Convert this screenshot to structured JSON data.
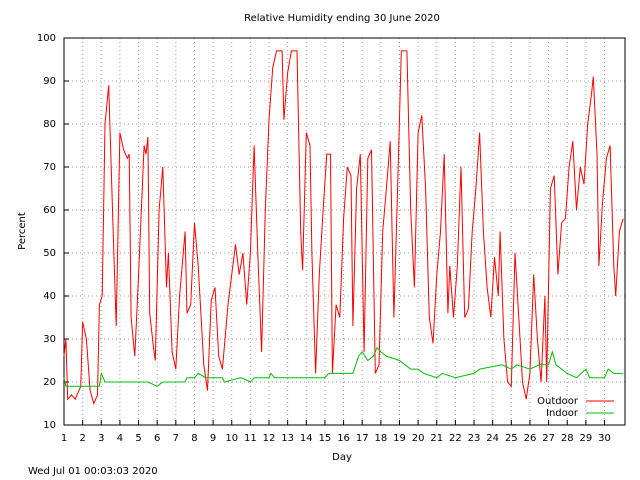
{
  "chart_data": {
    "type": "line",
    "title": "Relative Humidity ending 30 June 2020",
    "ylabel": "Percent",
    "xlabel": "Day",
    "footer": "Wed Jul 01 00:03:03 2020",
    "xlim": [
      1,
      31.1
    ],
    "ylim": [
      10,
      100
    ],
    "xticks": [
      1,
      2,
      3,
      4,
      5,
      6,
      7,
      8,
      9,
      10,
      11,
      12,
      13,
      14,
      15,
      16,
      17,
      18,
      19,
      20,
      21,
      22,
      23,
      24,
      25,
      26,
      27,
      28,
      29,
      30
    ],
    "yticks": [
      10,
      20,
      30,
      40,
      50,
      60,
      70,
      80,
      90,
      100
    ],
    "grid": true,
    "legend": "lower-right",
    "series": [
      {
        "name": "Outdoor",
        "color": "#ff0000",
        "x": [
          1,
          1.1,
          1.2,
          1.4,
          1.6,
          1.9,
          2.0,
          2.2,
          2.4,
          2.6,
          2.8,
          2.9,
          3.05,
          3.2,
          3.4,
          3.6,
          3.8,
          4.0,
          4.2,
          4.4,
          4.5,
          4.6,
          4.8,
          5.0,
          5.3,
          5.4,
          5.5,
          5.6,
          5.8,
          5.9,
          6.1,
          6.3,
          6.5,
          6.6,
          6.8,
          7.0,
          7.2,
          7.5,
          7.6,
          7.8,
          8.0,
          8.2,
          8.5,
          8.7,
          8.9,
          9.1,
          9.3,
          9.5,
          9.8,
          10.2,
          10.4,
          10.6,
          10.8,
          11.0,
          11.2,
          11.4,
          11.6,
          11.8,
          12.0,
          12.2,
          12.4,
          12.7,
          12.8,
          13.0,
          13.2,
          13.5,
          13.7,
          13.8,
          14.0,
          14.2,
          14.3,
          14.5,
          14.7,
          14.9,
          15.1,
          15.3,
          15.4,
          15.6,
          15.8,
          16.0,
          16.2,
          16.4,
          16.5,
          16.7,
          16.9,
          17.1,
          17.3,
          17.5,
          17.7,
          17.9,
          18.1,
          18.3,
          18.5,
          18.7,
          18.9,
          19.1,
          19.4,
          19.6,
          19.8,
          20.0,
          20.2,
          20.4,
          20.6,
          20.8,
          21.0,
          21.2,
          21.4,
          21.6,
          21.7,
          21.9,
          22.1,
          22.3,
          22.5,
          22.7,
          22.9,
          23.1,
          23.3,
          23.5,
          23.7,
          23.9,
          24.1,
          24.3,
          24.4,
          24.6,
          24.8,
          25.0,
          25.2,
          25.4,
          25.6,
          25.8,
          26.0,
          26.2,
          26.4,
          26.6,
          26.8,
          26.9,
          27.1,
          27.3,
          27.5,
          27.7,
          27.9,
          28.1,
          28.3,
          28.5,
          28.7,
          28.9,
          29.1,
          29.3,
          29.4,
          29.6,
          29.7,
          29.9,
          30.1,
          30.3,
          30.5,
          30.6,
          30.8,
          31.0
        ],
        "values": [
          26,
          30,
          16,
          17,
          16,
          19,
          34,
          30,
          18,
          15,
          17,
          38,
          40,
          80,
          89,
          60,
          33,
          78,
          74,
          72,
          73,
          35,
          26,
          45,
          75,
          73,
          77,
          36,
          28,
          25,
          60,
          70,
          42,
          50,
          27,
          23,
          40,
          55,
          36,
          38,
          57,
          47,
          24,
          18,
          39,
          42,
          26,
          23,
          38,
          52,
          45,
          50,
          38,
          50,
          75,
          50,
          27,
          60,
          81,
          93,
          97,
          97,
          81,
          92,
          97,
          97,
          55,
          46,
          78,
          75,
          50,
          22,
          45,
          60,
          73,
          73,
          22,
          38,
          35,
          58,
          70,
          68,
          33,
          65,
          73,
          27,
          72,
          74,
          22,
          24,
          55,
          65,
          76,
          35,
          65,
          97,
          97,
          60,
          42,
          78,
          82,
          65,
          35,
          29,
          45,
          55,
          73,
          36,
          47,
          35,
          47,
          70,
          35,
          37,
          55,
          65,
          78,
          55,
          42,
          35,
          49,
          40,
          55,
          30,
          20,
          19,
          50,
          35,
          20,
          16,
          22,
          45,
          30,
          20,
          40,
          20,
          65,
          68,
          45,
          57,
          58,
          70,
          76,
          60,
          70,
          66,
          80,
          87,
          91,
          73,
          47,
          62,
          72,
          75,
          47,
          40,
          55,
          58
        ]
      },
      {
        "name": "Indoor",
        "color": "#00c000",
        "x": [
          1,
          1.1,
          2.0,
          2.9,
          3.0,
          3.2,
          5.5,
          6.0,
          6.3,
          7.5,
          7.6,
          8.0,
          8.2,
          8.6,
          9.5,
          9.6,
          10.5,
          11.0,
          11.2,
          12.0,
          12.1,
          12.3,
          15.0,
          15.2,
          16.5,
          16.8,
          17.0,
          17.3,
          17.6,
          17.8,
          18.0,
          18.3,
          19.0,
          19.3,
          19.6,
          20.0,
          20.3,
          21.0,
          21.3,
          22.0,
          23.0,
          23.3,
          24.5,
          25.0,
          25.3,
          26.0,
          26.5,
          27.0,
          27.2,
          27.4,
          28.0,
          28.5,
          29.0,
          29.2,
          30.0,
          30.2,
          30.5,
          31.0
        ],
        "values": [
          21,
          19,
          19,
          19,
          22,
          20,
          20,
          19,
          20,
          20,
          21,
          21,
          22,
          21,
          21,
          20,
          21,
          20,
          21,
          21,
          22,
          21,
          21,
          22,
          22,
          26,
          27,
          25,
          26,
          28,
          27,
          26,
          25,
          24,
          23,
          23,
          22,
          21,
          22,
          21,
          22,
          23,
          24,
          23,
          24,
          23,
          24,
          24,
          27,
          24,
          22,
          21,
          23,
          21,
          21,
          23,
          22,
          22
        ]
      }
    ]
  }
}
